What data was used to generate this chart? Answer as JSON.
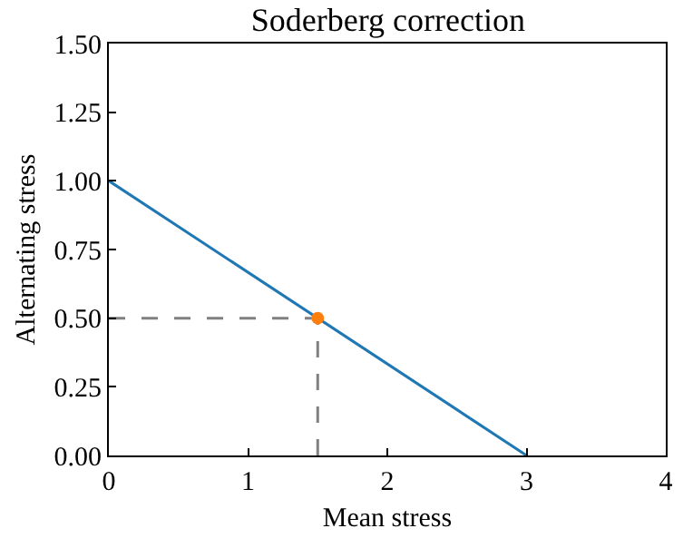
{
  "chart_data": {
    "type": "line",
    "title": "Soderberg correction",
    "xlabel": "Mean stress",
    "ylabel": "Alternating stress",
    "xlim": [
      0,
      4
    ],
    "xticks": [
      0,
      1,
      2,
      3,
      4
    ],
    "ylim": [
      0,
      1.5
    ],
    "yticks": [
      {
        "value": 0,
        "label": "0.00"
      },
      {
        "value": 0.25,
        "label": "0.25"
      },
      {
        "value": 0.5,
        "label": "0.50"
      },
      {
        "value": 0.75,
        "label": "0.75"
      },
      {
        "value": 1,
        "label": "1.00"
      },
      {
        "value": 1.25,
        "label": "1.25"
      },
      {
        "value": 1.5,
        "label": "1.50"
      }
    ],
    "series": [
      {
        "x": [
          0,
          3
        ],
        "values": [
          1,
          0
        ],
        "color": "#1f77b4",
        "line_style": "solid"
      },
      {
        "type": "line",
        "x": [
          0,
          1.5
        ],
        "values": [
          0.5,
          0.5
        ],
        "color": "#808080",
        "line_style": "dashed"
      },
      {
        "type": "line",
        "x": [
          1.5,
          1.5
        ],
        "values": [
          0,
          0.5
        ],
        "color": "#808080",
        "line_style": "dashed"
      },
      {
        "type": "scatter",
        "x": [
          1.5
        ],
        "values": [
          0.5
        ],
        "color": "#ff7f0e",
        "marker": "circle"
      }
    ]
  }
}
